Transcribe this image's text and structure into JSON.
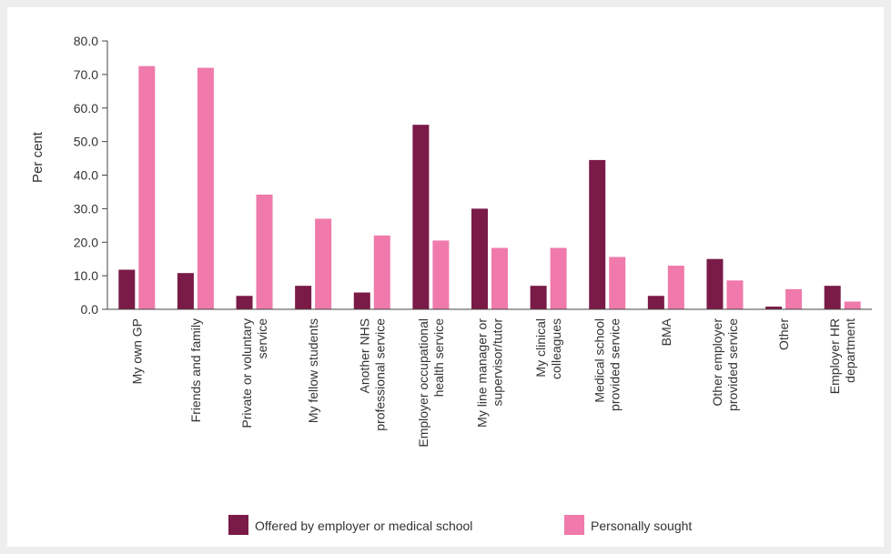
{
  "chart_data": {
    "type": "bar",
    "title": "",
    "xlabel": "",
    "ylabel": "Per cent",
    "ylim": [
      0,
      80
    ],
    "yticks": [
      "0.0",
      "10.0",
      "20.0",
      "30.0",
      "40.0",
      "50.0",
      "60.0",
      "70.0",
      "80.0"
    ],
    "grid": false,
    "legend_position": "bottom",
    "categories": [
      [
        "My own GP"
      ],
      [
        "Friends and family"
      ],
      [
        "Private or voluntary",
        "service"
      ],
      [
        "My fellow students"
      ],
      [
        "Another NHS",
        "professional service"
      ],
      [
        "Employer occupational",
        "health service"
      ],
      [
        "My line manager or",
        "supervisor/tutor"
      ],
      [
        "My clinical",
        "colleagues"
      ],
      [
        "Medical school",
        "provided service"
      ],
      [
        "BMA"
      ],
      [
        "Other employer",
        "provided service"
      ],
      [
        "Other"
      ],
      [
        "Employer HR",
        "department"
      ]
    ],
    "series": [
      {
        "name": "Offered by employer or medical school",
        "color": "#7a1a47",
        "values": [
          11.8,
          10.8,
          4.0,
          7.0,
          5.0,
          55.0,
          30.0,
          7.0,
          44.5,
          4.0,
          15.0,
          0.8,
          7.0
        ]
      },
      {
        "name": "Personally sought",
        "color": "#ef7aab",
        "values": [
          72.5,
          72.0,
          34.2,
          27.0,
          22.0,
          20.5,
          18.3,
          18.3,
          15.6,
          13.0,
          8.6,
          6.0,
          2.3
        ]
      }
    ]
  }
}
